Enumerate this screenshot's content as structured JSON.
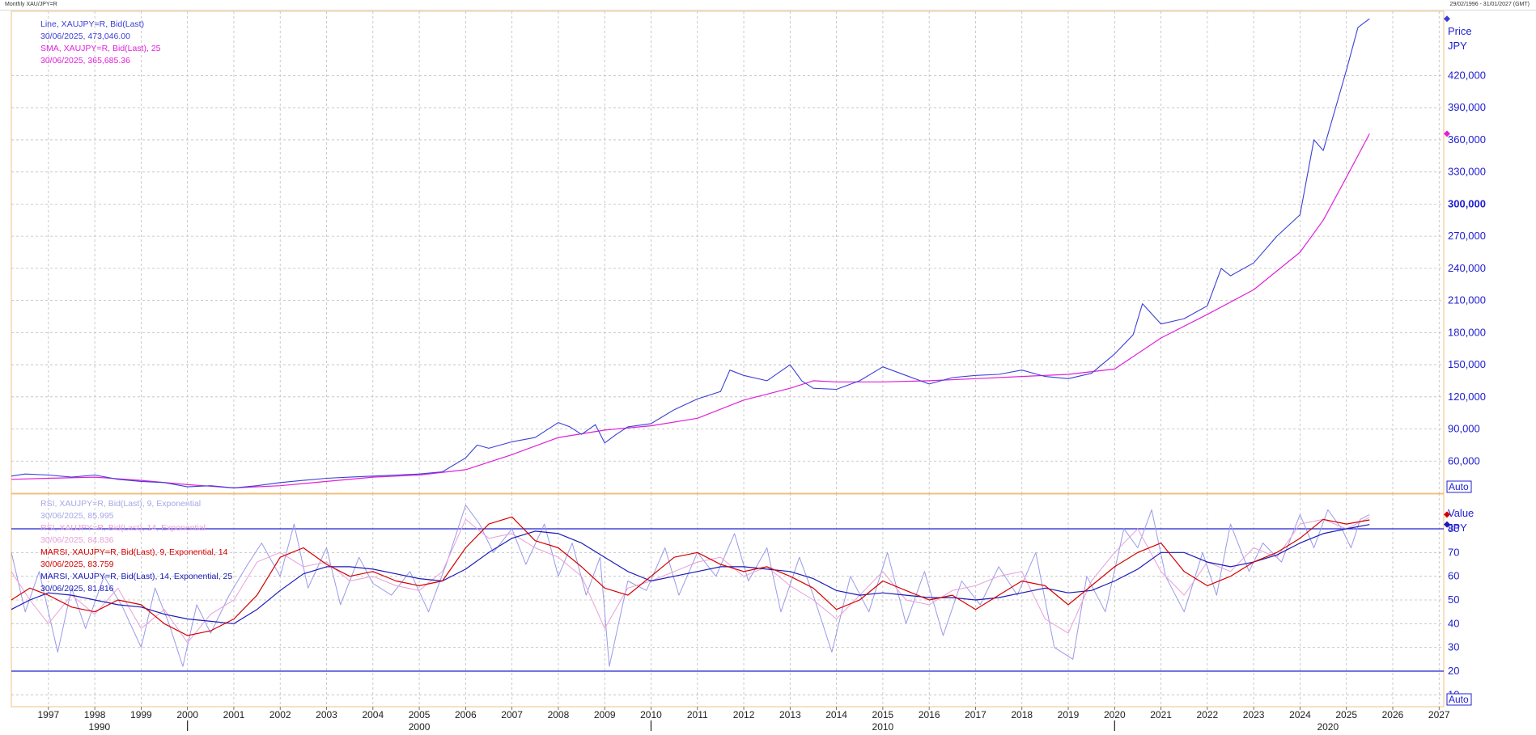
{
  "window": {
    "title": "Monthly XAU/JPY=R",
    "range": "29/02/1996 - 31/01/2027 (GMT)"
  },
  "colors": {
    "price": "#3b3fd6",
    "sma": "#e020d8",
    "rsi9": "#9a9ae8",
    "rsi14": "#e8a0d8",
    "marsi9": "#d40000",
    "marsi14": "#1a1ab8",
    "hline": "#2020d0",
    "grid": "#bdbdbd",
    "frame": "#f0c080"
  },
  "price_panel": {
    "legend": [
      {
        "label": "Line, XAUJPY=R, Bid(Last)",
        "value": "30/06/2025, 473,046.00"
      },
      {
        "label": "SMA, XAUJPY=R, Bid(Last),  25",
        "value": "30/06/2025, 365,685.36"
      }
    ],
    "axis_title": "Price",
    "axis_unit": "JPY",
    "auto_label": "Auto"
  },
  "rsi_panel": {
    "legend": [
      {
        "label": "RSI, XAUJPY=R, Bid(Last),  9, Exponential",
        "value": "30/06/2025, 85.995"
      },
      {
        "label": "RSI, XAUJPY=R, Bid(Last),  14, Exponential",
        "value": "30/06/2025, 84.836"
      },
      {
        "label": "MARSI, XAUJPY=R, Bid(Last),  9, Exponential, 14",
        "value": "30/06/2025, 83.759"
      },
      {
        "label": "MARSI, XAUJPY=R, Bid(Last),  14, Exponential, 25",
        "value": "30/06/2025, 81.816"
      }
    ],
    "axis_title": "Value",
    "axis_unit": "JPY",
    "auto_label": "Auto"
  },
  "chart_data": [
    {
      "type": "line",
      "title": "",
      "xlabel": "",
      "ylabel": "Price JPY",
      "xlim": [
        1996.2,
        2027.1
      ],
      "ylim": [
        30000,
        480000
      ],
      "yticks": [
        60000,
        90000,
        120000,
        150000,
        180000,
        210000,
        240000,
        270000,
        300000,
        330000,
        360000,
        390000,
        420000
      ],
      "ytick_labels": [
        "60,000",
        "90,000",
        "120,000",
        "150,000",
        "180,000",
        "210,000",
        "240,000",
        "270,000",
        "300,000",
        "330,000",
        "360,000",
        "390,000",
        "420,000"
      ],
      "series": [
        {
          "name": "Line, XAUJPY=R, Bid(Last)",
          "x": [
            1996.2,
            1996.5,
            1997.0,
            1997.5,
            1998.0,
            1998.5,
            1999.0,
            1999.5,
            2000.0,
            2000.5,
            2001.0,
            2001.5,
            2002.0,
            2002.5,
            2003.0,
            2003.5,
            2004.0,
            2004.5,
            2005.0,
            2005.5,
            2006.0,
            2006.25,
            2006.5,
            2007.0,
            2007.5,
            2008.0,
            2008.25,
            2008.5,
            2008.8,
            2009.0,
            2009.25,
            2009.5,
            2010.0,
            2010.5,
            2011.0,
            2011.5,
            2011.7,
            2012.0,
            2012.5,
            2013.0,
            2013.25,
            2013.5,
            2014.0,
            2014.5,
            2015.0,
            2015.5,
            2016.0,
            2016.5,
            2017.0,
            2017.5,
            2018.0,
            2018.5,
            2019.0,
            2019.5,
            2020.0,
            2020.4,
            2020.6,
            2021.0,
            2021.5,
            2022.0,
            2022.3,
            2022.5,
            2023.0,
            2023.5,
            2024.0,
            2024.3,
            2024.5,
            2024.8,
            2025.0,
            2025.25,
            2025.5
          ],
          "values": [
            46000,
            48000,
            47000,
            45000,
            47000,
            43000,
            41000,
            40000,
            36000,
            37000,
            35000,
            37000,
            40000,
            42000,
            44000,
            45000,
            46000,
            47000,
            48000,
            50000,
            63000,
            75000,
            72000,
            78000,
            82000,
            96000,
            92000,
            85000,
            94000,
            77000,
            85000,
            92000,
            95000,
            108000,
            118000,
            125000,
            145000,
            140000,
            135000,
            150000,
            135000,
            128000,
            127000,
            135000,
            148000,
            140000,
            132000,
            138000,
            140000,
            141000,
            145000,
            139000,
            137000,
            142000,
            160000,
            178000,
            207000,
            188000,
            193000,
            205000,
            240000,
            233000,
            245000,
            270000,
            290000,
            360000,
            350000,
            395000,
            425000,
            465000,
            473046
          ]
        },
        {
          "name": "SMA, XAUJPY=R, Bid(Last),  25",
          "x": [
            1996.2,
            1997.0,
            1998.0,
            1999.0,
            2000.0,
            2001.0,
            2002.0,
            2003.0,
            2004.0,
            2005.0,
            2006.0,
            2007.0,
            2008.0,
            2009.0,
            2010.0,
            2011.0,
            2012.0,
            2013.0,
            2013.5,
            2014.0,
            2015.0,
            2016.0,
            2017.0,
            2018.0,
            2019.0,
            2020.0,
            2021.0,
            2022.0,
            2023.0,
            2024.0,
            2024.5,
            2025.0,
            2025.5
          ],
          "values": [
            43000,
            44000,
            45000,
            42000,
            38000,
            35000,
            37000,
            41000,
            45000,
            47000,
            52000,
            66000,
            82000,
            89000,
            93000,
            100000,
            117000,
            128000,
            135000,
            134000,
            134000,
            135000,
            137000,
            139000,
            141000,
            146000,
            175000,
            197000,
            220000,
            255000,
            285000,
            325000,
            365685
          ]
        }
      ]
    },
    {
      "type": "line",
      "title": "",
      "xlabel": "",
      "ylabel": "Value JPY",
      "xlim": [
        1996.2,
        2027.1
      ],
      "ylim": [
        5,
        95
      ],
      "yticks": [
        10,
        20,
        30,
        40,
        50,
        60,
        70,
        80
      ],
      "ytick_labels": [
        "10",
        "20",
        "30",
        "40",
        "50",
        "60",
        "70",
        "80"
      ],
      "hlines": [
        20,
        80
      ],
      "series": [
        {
          "name": "RSI, XAUJPY=R, Bid(Last),  9, Exponential",
          "x": [
            1996.2,
            1996.5,
            1996.8,
            1997.2,
            1997.5,
            1997.8,
            1998.2,
            1998.6,
            1999.0,
            1999.3,
            1999.6,
            1999.9,
            2000.2,
            2000.5,
            2000.9,
            2001.3,
            2001.6,
            2002.0,
            2002.3,
            2002.6,
            2003.0,
            2003.3,
            2003.7,
            2004.0,
            2004.4,
            2004.8,
            2005.2,
            2005.6,
            2006.0,
            2006.3,
            2006.6,
            2007.0,
            2007.3,
            2007.7,
            2008.0,
            2008.3,
            2008.6,
            2008.9,
            2009.1,
            2009.5,
            2009.9,
            2010.3,
            2010.6,
            2011.0,
            2011.4,
            2011.8,
            2012.1,
            2012.5,
            2012.8,
            2013.2,
            2013.5,
            2013.9,
            2014.3,
            2014.7,
            2015.1,
            2015.5,
            2015.9,
            2016.3,
            2016.7,
            2017.1,
            2017.5,
            2017.9,
            2018.3,
            2018.7,
            2019.1,
            2019.4,
            2019.8,
            2020.2,
            2020.5,
            2020.8,
            2021.1,
            2021.5,
            2021.9,
            2022.2,
            2022.5,
            2022.9,
            2023.2,
            2023.6,
            2024.0,
            2024.3,
            2024.6,
            2024.9,
            2025.1,
            2025.3,
            2025.5
          ],
          "values": [
            70,
            45,
            62,
            28,
            55,
            38,
            60,
            47,
            30,
            55,
            40,
            22,
            48,
            36,
            52,
            65,
            74,
            60,
            82,
            55,
            72,
            48,
            68,
            57,
            52,
            62,
            45,
            66,
            90,
            82,
            70,
            80,
            65,
            82,
            60,
            74,
            52,
            68,
            22,
            58,
            54,
            72,
            52,
            70,
            60,
            78,
            58,
            72,
            45,
            68,
            52,
            28,
            60,
            45,
            70,
            40,
            62,
            35,
            58,
            48,
            64,
            52,
            70,
            30,
            25,
            60,
            45,
            80,
            72,
            88,
            60,
            45,
            70,
            52,
            82,
            62,
            74,
            66,
            86,
            72,
            88,
            80,
            72,
            84,
            86
          ]
        },
        {
          "name": "RSI, XAUJPY=R, Bid(Last),  14, Exponential",
          "x": [
            1996.2,
            1996.6,
            1997.0,
            1997.5,
            1998.0,
            1998.5,
            1999.0,
            1999.5,
            2000.0,
            2000.5,
            2001.0,
            2001.5,
            2002.0,
            2002.5,
            2003.0,
            2003.5,
            2004.0,
            2004.5,
            2005.0,
            2005.5,
            2006.0,
            2006.5,
            2007.0,
            2007.5,
            2008.0,
            2008.5,
            2009.0,
            2009.5,
            2010.0,
            2010.5,
            2011.0,
            2011.5,
            2012.0,
            2012.5,
            2013.0,
            2013.5,
            2014.0,
            2014.5,
            2015.0,
            2015.5,
            2016.0,
            2016.5,
            2017.0,
            2017.5,
            2018.0,
            2018.5,
            2019.0,
            2019.5,
            2020.0,
            2020.5,
            2021.0,
            2021.5,
            2022.0,
            2022.5,
            2023.0,
            2023.5,
            2024.0,
            2024.5,
            2025.0,
            2025.5
          ],
          "values": [
            62,
            50,
            40,
            52,
            44,
            55,
            38,
            46,
            32,
            44,
            50,
            66,
            70,
            64,
            66,
            58,
            60,
            56,
            54,
            62,
            84,
            76,
            78,
            72,
            68,
            60,
            38,
            55,
            58,
            62,
            66,
            68,
            60,
            64,
            56,
            50,
            42,
            52,
            62,
            50,
            48,
            54,
            56,
            60,
            62,
            42,
            36,
            58,
            70,
            80,
            62,
            52,
            66,
            62,
            72,
            68,
            82,
            84,
            80,
            84.836
          ]
        },
        {
          "name": "MARSI, XAUJPY=R, Bid(Last),  9, Exponential, 14",
          "x": [
            1996.2,
            1996.6,
            1997.0,
            1997.5,
            1998.0,
            1998.5,
            1999.0,
            1999.5,
            2000.0,
            2000.5,
            2001.0,
            2001.5,
            2002.0,
            2002.5,
            2003.0,
            2003.5,
            2004.0,
            2004.5,
            2005.0,
            2005.5,
            2006.0,
            2006.5,
            2007.0,
            2007.5,
            2008.0,
            2008.5,
            2009.0,
            2009.5,
            2010.0,
            2010.5,
            2011.0,
            2011.5,
            2012.0,
            2012.5,
            2013.0,
            2013.5,
            2014.0,
            2014.5,
            2015.0,
            2015.5,
            2016.0,
            2016.5,
            2017.0,
            2017.5,
            2018.0,
            2018.5,
            2019.0,
            2019.5,
            2020.0,
            2020.5,
            2021.0,
            2021.5,
            2022.0,
            2022.5,
            2023.0,
            2023.5,
            2024.0,
            2024.5,
            2025.0,
            2025.5
          ],
          "values": [
            50,
            55,
            52,
            47,
            45,
            50,
            48,
            40,
            35,
            37,
            42,
            52,
            68,
            72,
            65,
            60,
            62,
            58,
            56,
            58,
            72,
            82,
            85,
            75,
            72,
            64,
            55,
            52,
            60,
            68,
            70,
            65,
            62,
            64,
            60,
            55,
            46,
            50,
            58,
            54,
            50,
            52,
            46,
            52,
            58,
            56,
            48,
            56,
            64,
            70,
            74,
            62,
            56,
            60,
            66,
            70,
            76,
            84,
            82,
            83.759
          ]
        },
        {
          "name": "MARSI, XAUJPY=R, Bid(Last),  14, Exponential, 25",
          "x": [
            1996.2,
            1996.6,
            1997.0,
            1997.5,
            1998.0,
            1998.5,
            1999.0,
            1999.5,
            2000.0,
            2000.5,
            2001.0,
            2001.5,
            2002.0,
            2002.5,
            2003.0,
            2003.5,
            2004.0,
            2004.5,
            2005.0,
            2005.5,
            2006.0,
            2006.5,
            2007.0,
            2007.5,
            2008.0,
            2008.5,
            2009.0,
            2009.5,
            2010.0,
            2010.5,
            2011.0,
            2011.5,
            2012.0,
            2012.5,
            2013.0,
            2013.5,
            2014.0,
            2014.5,
            2015.0,
            2015.5,
            2016.0,
            2016.5,
            2017.0,
            2017.5,
            2018.0,
            2018.5,
            2019.0,
            2019.5,
            2020.0,
            2020.5,
            2021.0,
            2021.5,
            2022.0,
            2022.5,
            2023.0,
            2023.5,
            2024.0,
            2024.5,
            2025.0,
            2025.5
          ],
          "values": [
            46,
            50,
            53,
            52,
            50,
            48,
            47,
            44,
            42,
            41,
            40,
            46,
            54,
            61,
            64,
            64,
            63,
            61,
            59,
            58,
            63,
            70,
            76,
            79,
            78,
            74,
            68,
            62,
            58,
            60,
            62,
            64,
            64,
            63,
            62,
            59,
            54,
            52,
            53,
            52,
            51,
            51,
            50,
            51,
            53,
            55,
            53,
            54,
            58,
            63,
            70,
            70,
            66,
            64,
            66,
            69,
            74,
            78,
            80,
            81.816
          ]
        }
      ]
    }
  ],
  "x_axis": {
    "years": [
      "1997",
      "1998",
      "1999",
      "2000",
      "2001",
      "2002",
      "2003",
      "2004",
      "2005",
      "2006",
      "2007",
      "2008",
      "2009",
      "2010",
      "2011",
      "2012",
      "2013",
      "2014",
      "2015",
      "2016",
      "2017",
      "2018",
      "2019",
      "2020",
      "2021",
      "2022",
      "2023",
      "2024",
      "2025",
      "2026",
      "2027"
    ],
    "decades": [
      {
        "label": "1990",
        "x": 1998.1
      },
      {
        "label": "2000",
        "x": 2005.0
      },
      {
        "label": "2010",
        "x": 2015.0
      },
      {
        "label": "2020",
        "x": 2024.6
      }
    ],
    "decade_separators": [
      2000,
      2010,
      2020
    ]
  }
}
